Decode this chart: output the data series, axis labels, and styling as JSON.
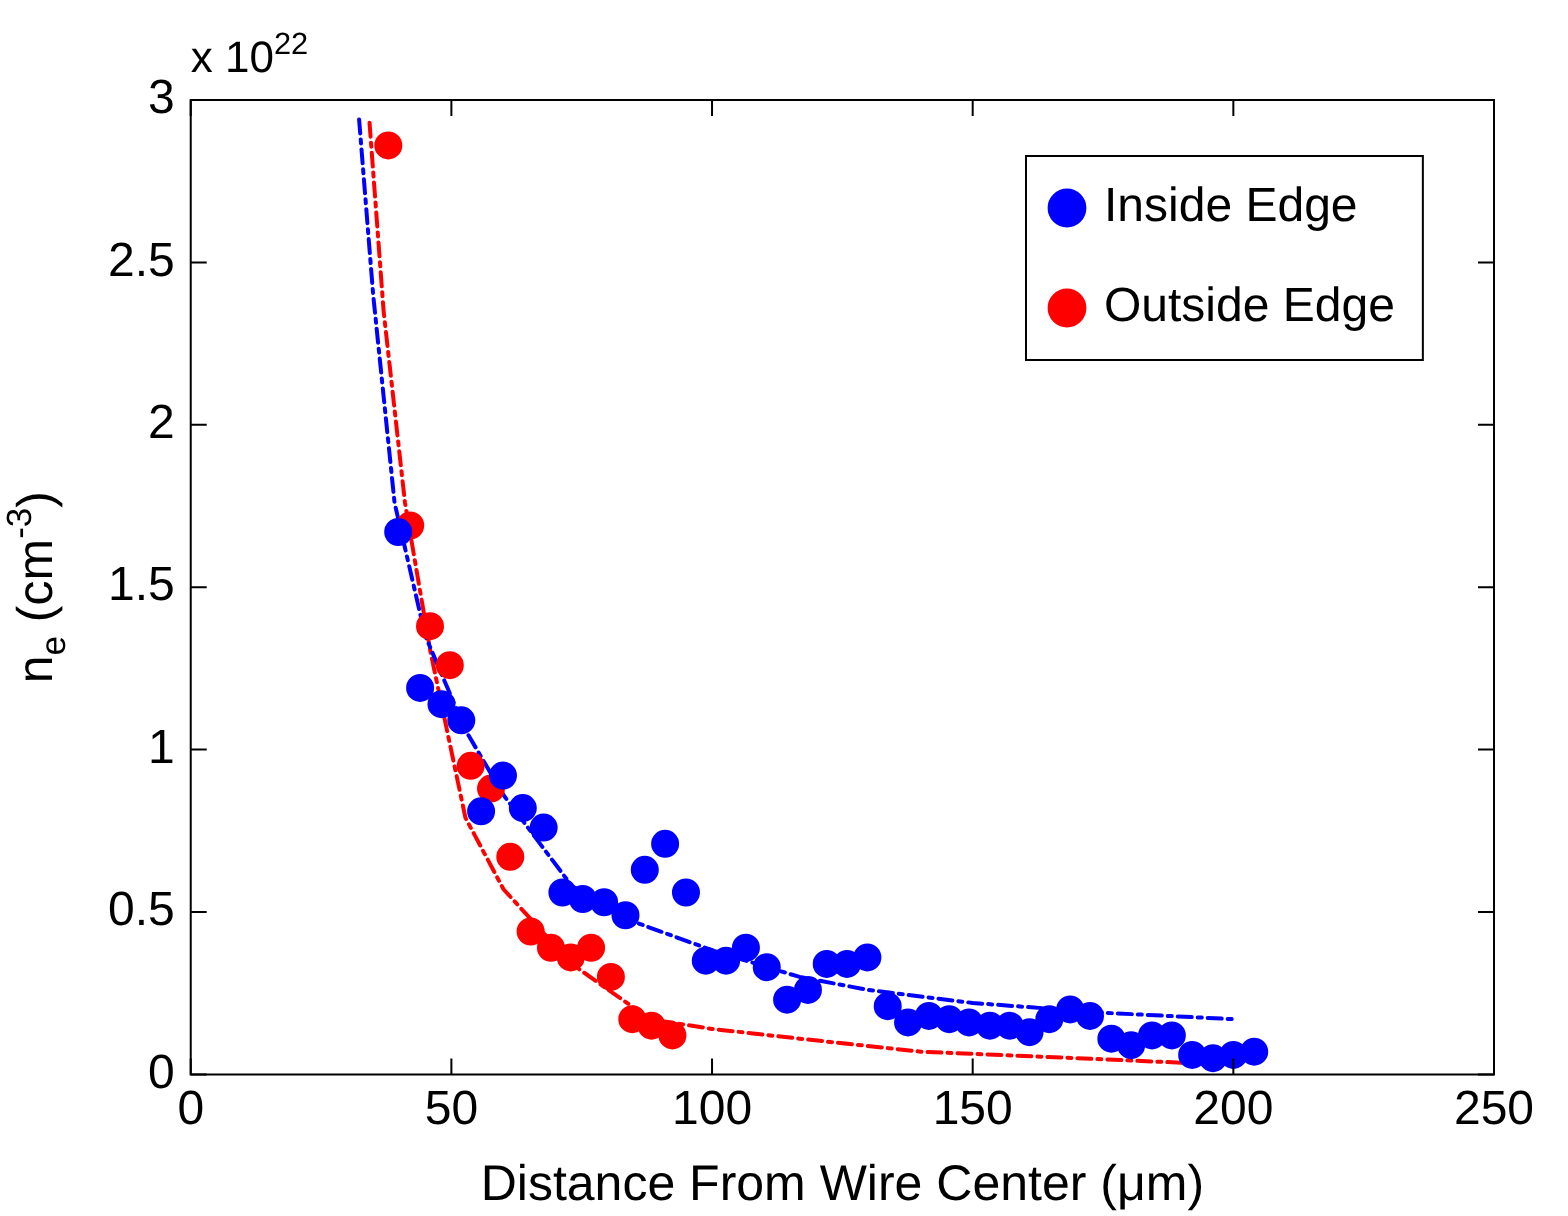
{
  "chart_data": {
    "type": "scatter",
    "xlabel": "Distance From Wire Center (μm)",
    "ylabel": "n$_{e}$ (cm$^{-3}$)",
    "annotations": [
      "x 10$^{22}$"
    ],
    "xlim": [
      0,
      250
    ],
    "xticks": [
      0,
      50,
      100,
      150,
      200,
      250
    ],
    "ylim": [
      0,
      3
    ],
    "yticks": [
      0,
      0.5,
      1,
      1.5,
      2,
      2.5,
      3
    ],
    "grid": false,
    "legend": "top right",
    "marker": "circle",
    "series": [
      {
        "name": "Inside Edge",
        "color": "#0000ff",
        "x": [
          39.8,
          44.0,
          48.1,
          51.9,
          55.7,
          59.9,
          63.7,
          67.7,
          71.3,
          75.2,
          79.3,
          83.4,
          87.1,
          91.0,
          95.0,
          98.8,
          102.7,
          106.5,
          110.5,
          114.4,
          118.4,
          122.0,
          125.9,
          129.8,
          133.7,
          137.6,
          141.6,
          145.5,
          149.3,
          153.3,
          157.1,
          160.9,
          164.7,
          168.7,
          172.5,
          176.6,
          180.4,
          184.4,
          188.2,
          192.1,
          196.1,
          200.0,
          204.0
        ],
        "values": [
          1.67,
          1.19,
          1.14,
          1.09,
          0.81,
          0.92,
          0.82,
          0.76,
          0.56,
          0.54,
          0.53,
          0.49,
          0.63,
          0.71,
          0.56,
          0.35,
          0.35,
          0.39,
          0.33,
          0.23,
          0.26,
          0.34,
          0.34,
          0.36,
          0.21,
          0.16,
          0.18,
          0.17,
          0.16,
          0.15,
          0.15,
          0.13,
          0.17,
          0.2,
          0.18,
          0.11,
          0.09,
          0.12,
          0.12,
          0.06,
          0.05,
          0.06,
          0.07
        ]
      },
      {
        "name": "Outside Edge",
        "color": "#ff0000",
        "x": [
          37.9,
          42.1,
          45.9,
          49.7,
          53.7,
          57.6,
          61.3,
          65.2,
          69.1,
          72.9,
          76.8,
          80.6,
          84.7,
          88.4,
          92.4
        ],
        "values": [
          2.86,
          1.69,
          1.38,
          1.26,
          0.95,
          0.88,
          0.67,
          0.44,
          0.39,
          0.36,
          0.39,
          0.3,
          0.17,
          0.15,
          0.12
        ]
      },
      {
        "type": "line",
        "color": "#0000ff",
        "marker": "none",
        "line_style": "dashdot",
        "x": [
          32.3,
          35,
          39.1,
          45,
          52.7,
          60,
          73.1,
          85,
          100.4,
          116.8,
          130,
          150,
          175,
          200
        ],
        "values": [
          2.94,
          2.4,
          1.76,
          1.35,
          1.06,
          0.86,
          0.58,
          0.47,
          0.38,
          0.3,
          0.26,
          0.22,
          0.19,
          0.17
        ]
      },
      {
        "type": "line",
        "color": "#ff0000",
        "marker": "none",
        "line_style": "dashdot",
        "x": [
          34.3,
          37,
          41.1,
          46,
          52.7,
          60,
          73.1,
          88.1,
          100,
          116.8,
          140,
          170,
          198.5
        ],
        "values": [
          2.93,
          2.35,
          1.76,
          1.3,
          0.79,
          0.57,
          0.34,
          0.17,
          0.14,
          0.11,
          0.07,
          0.05,
          0.03
        ]
      }
    ]
  }
}
